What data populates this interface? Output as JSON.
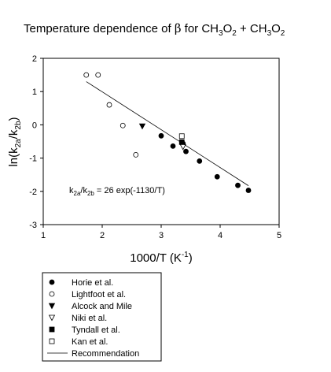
{
  "chart_data": {
    "type": "scatter",
    "title_parts": {
      "t1": "Temperature dependence of ",
      "beta": "β",
      "t2": " for CH",
      "s1": "3",
      "t3": "O",
      "s2": "2",
      "t4": "  + CH",
      "s3": "3",
      "t5": "O",
      "s4": "2"
    },
    "xlabel_parts": {
      "main": "1000/T (K",
      "sup": "-1",
      "close": ")"
    },
    "ylabel_parts": {
      "ln": "ln(k",
      "sub1": "2a",
      "slash": "/k",
      "sub2": "2b",
      "close": ")"
    },
    "annotation_parts": {
      "k": "k",
      "sub1": "2a",
      "slash": "/k",
      "sub2": "2b",
      "rest": " = 26 exp(-1130/T)"
    },
    "xlim": [
      1,
      5
    ],
    "ylim": [
      -3,
      2
    ],
    "x_ticks": [
      "1",
      "2",
      "3",
      "4",
      "5"
    ],
    "y_ticks": [
      "2",
      "1",
      "0",
      "-1",
      "-2",
      "-3"
    ],
    "series": [
      {
        "name": "Horie et al.",
        "marker": "circle-filled",
        "points": [
          [
            3.0,
            -0.33
          ],
          [
            3.2,
            -0.64
          ],
          [
            3.37,
            -0.56
          ],
          [
            3.42,
            -0.8
          ],
          [
            3.65,
            -1.09
          ],
          [
            3.95,
            -1.56
          ],
          [
            4.3,
            -1.82
          ],
          [
            4.48,
            -1.97
          ]
        ]
      },
      {
        "name": "Lightfoot et al.",
        "marker": "circle-open",
        "points": [
          [
            1.73,
            1.5
          ],
          [
            1.93,
            1.5
          ],
          [
            2.12,
            0.6
          ],
          [
            2.35,
            -0.02
          ],
          [
            2.57,
            -0.9
          ]
        ]
      },
      {
        "name": "Alcock and Mile",
        "marker": "triangle-down-filled",
        "points": [
          [
            2.68,
            -0.04
          ]
        ]
      },
      {
        "name": "Niki  et al.",
        "marker": "triangle-down-open",
        "points": [
          [
            3.37,
            -0.66
          ]
        ]
      },
      {
        "name": "Tyndall et al.",
        "marker": "square-filled",
        "points": [
          [
            3.35,
            -0.52
          ]
        ]
      },
      {
        "name": "Kan et al.",
        "marker": "square-open",
        "points": [
          [
            3.35,
            -0.34
          ]
        ]
      },
      {
        "name": "Recommendation",
        "marker": "line",
        "points": [
          [
            1.73,
            1.3
          ],
          [
            4.48,
            -1.83
          ]
        ]
      }
    ]
  }
}
